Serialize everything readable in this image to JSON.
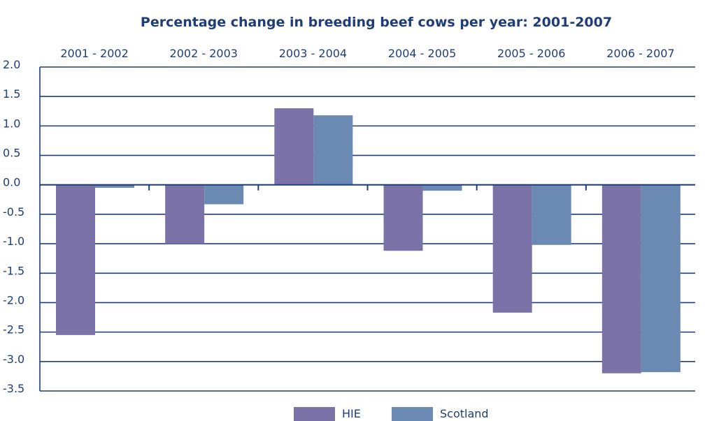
{
  "chart_data": {
    "type": "bar",
    "title": "Percentage change in breeding beef cows per year: 2001-2007",
    "xlabel": "",
    "ylabel": "",
    "categories": [
      "2001 - 2002",
      "2002 - 2003",
      "2003 - 2004",
      "2004 - 2005",
      "2005 - 2006",
      "2006 - 2007"
    ],
    "series": [
      {
        "name": "HIE",
        "color": "#7b73a7",
        "values": [
          -2.55,
          -1.0,
          1.3,
          -1.12,
          -2.17,
          -3.2
        ]
      },
      {
        "name": "Scotland",
        "color": "#6a8ab3",
        "values": [
          -0.05,
          -0.33,
          1.18,
          -0.1,
          -1.02,
          -3.18
        ]
      }
    ],
    "ylim": [
      -3.5,
      2.0
    ],
    "yticks": [
      "2.0",
      "1.5",
      "1.0",
      "0.5",
      "0.0",
      "-0.5",
      "-1.0",
      "-1.5",
      "-2.0",
      "-2.5",
      "-3.0",
      "-3.5"
    ],
    "grid": true,
    "legend_position": "bottom-center",
    "title_color": "#1f3d79",
    "line_color": "#1f3d79",
    "text_color": "#1f3d79"
  }
}
